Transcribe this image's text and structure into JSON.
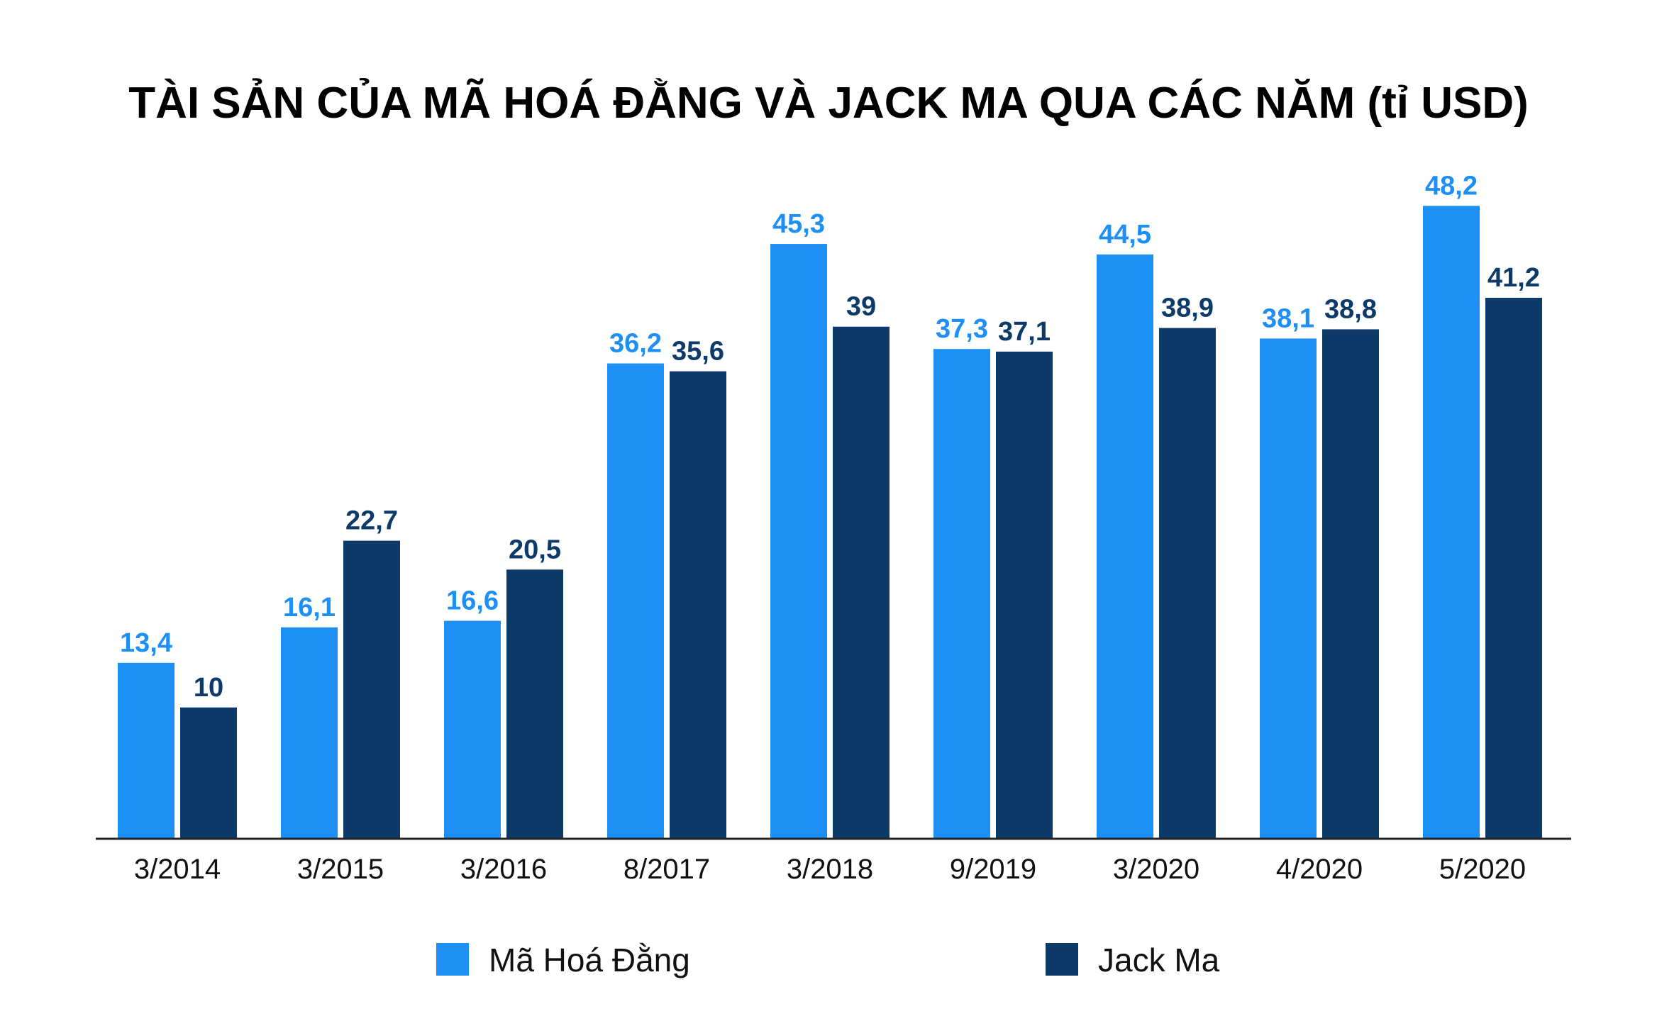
{
  "chart_data": {
    "type": "bar",
    "title": "TÀI SẢN CỦA MÃ HOÁ ĐẰNG VÀ JACK MA QUA CÁC NĂM (tỉ USD)",
    "categories": [
      "3/2014",
      "3/2015",
      "3/2016",
      "8/2017",
      "3/2018",
      "9/2019",
      "3/2020",
      "4/2020",
      "5/2020"
    ],
    "series": [
      {
        "name": "Mã Hoá Đằng",
        "color": "#1e8ff5",
        "values": [
          13.4,
          16.1,
          16.6,
          36.2,
          45.3,
          37.3,
          44.5,
          38.1,
          48.2
        ],
        "labels": [
          "13,4",
          "16,1",
          "16,6",
          "36,2",
          "45,3",
          "37,3",
          "44,5",
          "38,1",
          "48,2"
        ]
      },
      {
        "name": "Jack Ma",
        "color": "#0e3a69",
        "values": [
          10,
          22.7,
          20.5,
          35.6,
          39,
          37.1,
          38.9,
          38.8,
          41.2
        ],
        "labels": [
          "10",
          "22,7",
          "20,5",
          "35,6",
          "39",
          "37,1",
          "38,9",
          "38,8",
          "41,2"
        ]
      }
    ],
    "ylim": [
      0,
      50
    ],
    "grid": false,
    "legend_position": "bottom"
  }
}
